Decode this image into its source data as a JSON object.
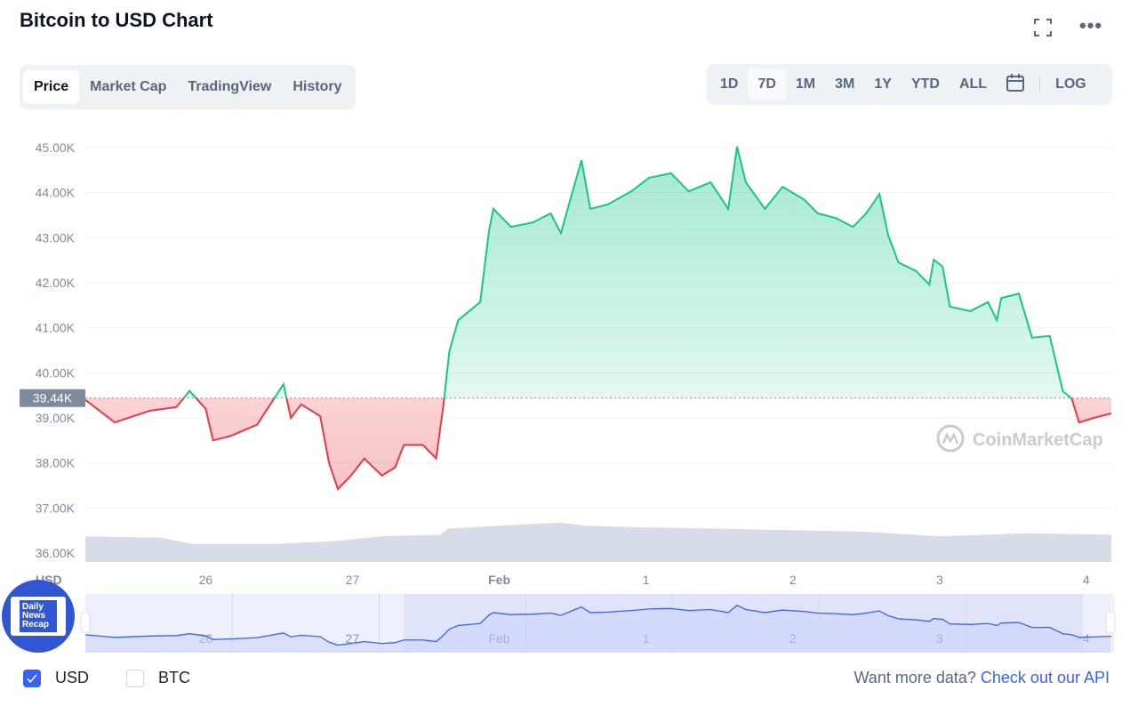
{
  "header": {
    "title": "Bitcoin to USD Chart",
    "fullscreen_icon": "fullscreen-icon",
    "more_icon": "more-icon"
  },
  "tabs": [
    {
      "label": "Price",
      "active": true
    },
    {
      "label": "Market Cap"
    },
    {
      "label": "TradingView"
    },
    {
      "label": "History"
    }
  ],
  "ranges": [
    {
      "label": "1D"
    },
    {
      "label": "7D",
      "active": true
    },
    {
      "label": "1M"
    },
    {
      "label": "3M"
    },
    {
      "label": "1Y"
    },
    {
      "label": "YTD"
    },
    {
      "label": "ALL"
    }
  ],
  "log_label": "LOG",
  "watermark": "CoinMarketCap",
  "badge": {
    "text": "Daily News Recap"
  },
  "footer": {
    "usd_label": "USD",
    "usd_checked": true,
    "btc_label": "BTC",
    "btc_checked": false,
    "prompt": "Want more data?",
    "api_link": "Check out our API"
  },
  "colors": {
    "up": "#16c784",
    "down": "#ea3943",
    "accent": "#3861fb",
    "volume": "#cfd6e4"
  },
  "chart_data": {
    "type": "line",
    "title": "Bitcoin to USD Chart",
    "ylabel": "USD",
    "ylim": [
      36000,
      45000
    ],
    "yticks": [
      45000,
      44000,
      43000,
      42000,
      41000,
      40000,
      39000,
      38000,
      37000,
      36000
    ],
    "ytick_labels": [
      "45.00K",
      "44.00K",
      "43.00K",
      "42.00K",
      "41.00K",
      "40.00K",
      "39.00K",
      "38.00K",
      "37.00K",
      "36.00K"
    ],
    "xlim": [
      0.18,
      7.17
    ],
    "xticks": [
      1,
      2,
      3,
      4,
      5,
      6,
      7
    ],
    "xtick_labels": [
      "26",
      "27",
      "Feb",
      "1",
      "2",
      "3",
      "4"
    ],
    "reference_price": 39440,
    "reference_label": "39.44K",
    "price": {
      "t": [
        0.18,
        0.38,
        0.62,
        0.8,
        0.89,
        1.0,
        1.05,
        1.17,
        1.35,
        1.44,
        1.53,
        1.58,
        1.65,
        1.78,
        1.84,
        1.9,
        1.99,
        2.08,
        2.2,
        2.29,
        2.35,
        2.48,
        2.57,
        2.62,
        2.66,
        2.72,
        2.87,
        2.93,
        2.96,
        3.08,
        3.23,
        3.35,
        3.42,
        3.5,
        3.56,
        3.62,
        3.74,
        3.9,
        4.02,
        4.17,
        4.29,
        4.44,
        4.56,
        4.62,
        4.68,
        4.81,
        4.93,
        5.08,
        5.17,
        5.29,
        5.41,
        5.5,
        5.59,
        5.65,
        5.72,
        5.84,
        5.93,
        5.96,
        6.02,
        6.07,
        6.21,
        6.33,
        6.39,
        6.42,
        6.54,
        6.63,
        6.75,
        6.84,
        6.9,
        6.95,
        7.05,
        7.17
      ],
      "usd": [
        39400,
        38900,
        39160,
        39240,
        39600,
        39200,
        38500,
        38600,
        38850,
        39300,
        39750,
        39000,
        39300,
        39040,
        38000,
        37420,
        37720,
        38100,
        37720,
        37900,
        38400,
        38400,
        38100,
        39300,
        40480,
        41170,
        41570,
        43150,
        43640,
        43240,
        43340,
        43540,
        43100,
        44030,
        44720,
        43640,
        43740,
        44030,
        44330,
        44430,
        44030,
        44230,
        43640,
        45020,
        44230,
        43640,
        44130,
        43840,
        43540,
        43440,
        43240,
        43540,
        43970,
        43050,
        42450,
        42260,
        41960,
        42510,
        42360,
        41470,
        41370,
        41570,
        41170,
        41660,
        41760,
        40780,
        40820,
        39590,
        39430,
        38900,
        39000,
        39100
      ]
    },
    "volume_relative": {
      "t": [
        0.18,
        0.7,
        0.9,
        1.5,
        1.9,
        2.2,
        2.6,
        2.65,
        3.0,
        3.4,
        3.6,
        3.9,
        4.5,
        5.0,
        5.5,
        6.0,
        6.6,
        7.17
      ],
      "v": [
        0.85,
        0.8,
        0.6,
        0.6,
        0.7,
        0.85,
        0.9,
        1.1,
        1.2,
        1.3,
        1.2,
        1.15,
        1.1,
        1.05,
        1.0,
        0.85,
        0.95,
        0.9
      ]
    },
    "navigator_xtick_labels": [
      "26",
      "27",
      "Feb",
      "1",
      "2",
      "3",
      "4"
    ]
  }
}
